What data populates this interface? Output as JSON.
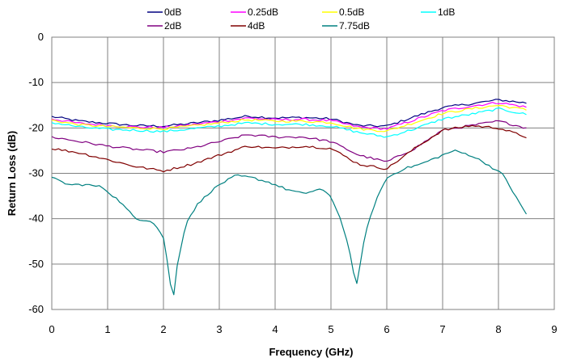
{
  "chart_data": {
    "type": "line",
    "title": "",
    "xlabel": "Frequency (GHz)",
    "ylabel": "Return Loss (dB)",
    "xlim": [
      0,
      9
    ],
    "ylim": [
      -60,
      0
    ],
    "xticks": [
      "0",
      "1",
      "2",
      "3",
      "4",
      "5",
      "6",
      "7",
      "8",
      "9"
    ],
    "yticks": [
      "0",
      "-10",
      "-20",
      "-30",
      "-40",
      "-50",
      "-60"
    ],
    "grid": true,
    "legend_position": "top",
    "series": [
      {
        "name": "0dB",
        "color": "#000080",
        "x": [
          0,
          0.5,
          1,
          1.5,
          2,
          2.5,
          3,
          3.5,
          4,
          4.5,
          5,
          5.5,
          6,
          6.5,
          7,
          7.5,
          8,
          8.5
        ],
        "y": [
          -17.5,
          -18.5,
          -19.0,
          -19.5,
          -19.6,
          -19.0,
          -18.3,
          -17.4,
          -17.8,
          -17.7,
          -18.0,
          -19.5,
          -19.6,
          -17.5,
          -15.5,
          -14.7,
          -13.8,
          -14.5
        ]
      },
      {
        "name": "0.25dB",
        "color": "#FF00FF",
        "x": [
          0,
          0.5,
          1,
          1.5,
          2,
          2.5,
          3,
          3.5,
          4,
          4.5,
          5,
          5.5,
          6,
          6.5,
          7,
          7.5,
          8,
          8.5
        ],
        "y": [
          -18.0,
          -19.0,
          -19.4,
          -19.8,
          -19.9,
          -19.3,
          -18.6,
          -17.8,
          -18.2,
          -18.1,
          -18.4,
          -19.8,
          -20.2,
          -18.2,
          -16.2,
          -15.2,
          -14.4,
          -15.4
        ]
      },
      {
        "name": "0.5dB",
        "color": "#FFFF00",
        "x": [
          0,
          0.5,
          1,
          1.5,
          2,
          2.5,
          3,
          3.5,
          4,
          4.5,
          5,
          5.5,
          6,
          6.5,
          7,
          7.5,
          8,
          8.5
        ],
        "y": [
          -18.3,
          -19.3,
          -19.7,
          -20.0,
          -20.2,
          -19.6,
          -18.9,
          -18.2,
          -18.5,
          -18.5,
          -18.8,
          -20.2,
          -20.7,
          -18.8,
          -16.8,
          -15.8,
          -15.0,
          -16.0
        ]
      },
      {
        "name": "1dB",
        "color": "#00FFFF",
        "x": [
          0,
          0.5,
          1,
          1.5,
          2,
          2.5,
          3,
          3.5,
          4,
          4.5,
          5,
          5.5,
          6,
          6.5,
          7,
          7.5,
          8,
          8.5
        ],
        "y": [
          -18.8,
          -19.8,
          -20.3,
          -20.5,
          -20.8,
          -20.2,
          -19.6,
          -18.9,
          -19.2,
          -19.2,
          -19.6,
          -21.0,
          -22.0,
          -20.2,
          -18.0,
          -17.0,
          -15.8,
          -17.0
        ]
      },
      {
        "name": "2dB",
        "color": "#800080",
        "x": [
          0,
          0.5,
          1,
          1.5,
          2,
          2.5,
          3,
          3.5,
          4,
          4.5,
          5,
          5.5,
          6,
          6.5,
          7,
          7.5,
          8,
          8.5
        ],
        "y": [
          -22.0,
          -23.0,
          -24.0,
          -24.7,
          -25.3,
          -24.5,
          -23.0,
          -21.5,
          -22.0,
          -22.0,
          -23.0,
          -26.0,
          -27.5,
          -24.5,
          -20.5,
          -19.5,
          -18.5,
          -20.0
        ]
      },
      {
        "name": "4dB",
        "color": "#800000",
        "x": [
          0,
          0.5,
          1,
          1.5,
          2,
          2.5,
          3,
          3.5,
          4,
          4.5,
          5,
          5.5,
          6,
          6.5,
          7,
          7.5,
          8,
          8.5
        ],
        "y": [
          -24.5,
          -25.5,
          -27.0,
          -28.5,
          -29.5,
          -28.0,
          -26.0,
          -24.0,
          -24.5,
          -24.0,
          -24.5,
          -28.0,
          -29.0,
          -24.5,
          -20.5,
          -19.5,
          -20.0,
          -22.0
        ]
      },
      {
        "name": "7.75dB",
        "color": "#008080",
        "x": [
          0,
          0.3,
          0.6,
          0.9,
          1.2,
          1.5,
          1.8,
          2.0,
          2.1,
          2.17,
          2.25,
          2.4,
          2.6,
          2.8,
          3.0,
          3.3,
          3.6,
          3.9,
          4.2,
          4.5,
          4.8,
          5.0,
          5.2,
          5.35,
          5.45,
          5.5,
          5.6,
          5.8,
          6.0,
          6.3,
          6.6,
          6.9,
          7.2,
          7.5,
          7.8,
          8.1,
          8.3,
          8.5
        ],
        "y": [
          -31.0,
          -32.5,
          -32.5,
          -33.0,
          -36.0,
          -40.0,
          -40.5,
          -44.0,
          -52.0,
          -58.5,
          -50.0,
          -41.0,
          -37.0,
          -34.5,
          -32.5,
          -30.5,
          -31.0,
          -32.0,
          -33.5,
          -34.5,
          -33.5,
          -35.0,
          -41.0,
          -48.0,
          -55.5,
          -52.0,
          -44.0,
          -36.0,
          -31.0,
          -29.0,
          -28.0,
          -26.5,
          -25.0,
          -26.0,
          -28.0,
          -30.5,
          -35.0,
          -39.0
        ]
      }
    ]
  }
}
